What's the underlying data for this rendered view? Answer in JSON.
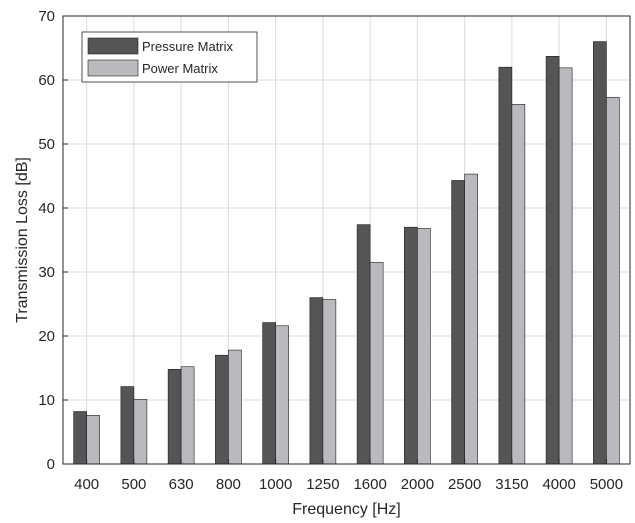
{
  "chart_data": {
    "type": "bar",
    "categories": [
      "400",
      "500",
      "630",
      "800",
      "1000",
      "1250",
      "1600",
      "2000",
      "2500",
      "3150",
      "4000",
      "5000"
    ],
    "series": [
      {
        "name": "Pressure Matrix",
        "color": "#555555",
        "values": [
          8.2,
          12.1,
          14.8,
          17.0,
          22.1,
          26.0,
          37.4,
          37.0,
          44.3,
          62.0,
          63.7,
          66.0
        ]
      },
      {
        "name": "Power Matrix",
        "color": "#b9b9be",
        "values": [
          7.6,
          10.1,
          15.2,
          17.8,
          21.6,
          25.7,
          31.5,
          36.8,
          45.3,
          56.2,
          61.9,
          57.3
        ]
      }
    ],
    "title": "",
    "xlabel": "Frequency [Hz]",
    "ylabel": "Transmission Loss [dB]",
    "ylim": [
      0,
      70
    ],
    "yticks": [
      "0",
      "10",
      "20",
      "30",
      "40",
      "50",
      "60",
      "70"
    ],
    "grid": true,
    "legend_position": "top-left"
  }
}
